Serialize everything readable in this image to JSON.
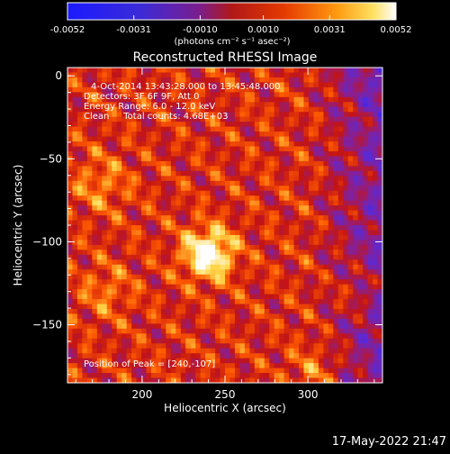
{
  "colorbar": {
    "tick_labels": [
      "-0.0052",
      "-0.0031",
      "-0.0010",
      "0.0010",
      "0.0031",
      "0.0052"
    ],
    "unit_label": "(photons cm⁻² s⁻¹ asec⁻²)",
    "range": [
      -0.0052,
      0.0052
    ],
    "colors": [
      "#1a1aff",
      "#5a2ad6",
      "#8a1f8f",
      "#c41414",
      "#ff5a00",
      "#ffd84a",
      "#ffffff"
    ]
  },
  "image": {
    "title": "Reconstructed RHESSI Image",
    "annotations": {
      "time": "4-Oct-2014 13:43:28.000 to 13:45:48.000",
      "detectors": "Detectors: 3F 6F 9F, Att 0",
      "energy": "Energy Range: 6.0 - 12.0 keV",
      "clean": "Clean     Total counts: 4.68E+03",
      "peak": "Position of Peak = [240,-107]"
    },
    "peak": {
      "x": 240,
      "y": -107
    }
  },
  "axes": {
    "xlabel": "Heliocentric X (arcsec)",
    "ylabel": "Heliocentric Y (arcsec)",
    "xlim": [
      155,
      345
    ],
    "ylim": [
      -185,
      5
    ],
    "x_ticks": [
      "200",
      "250",
      "300"
    ],
    "y_ticks": [
      "0",
      "-50",
      "-100",
      "-150"
    ]
  },
  "footer": {
    "date": "17-May-2022 21:47"
  }
}
